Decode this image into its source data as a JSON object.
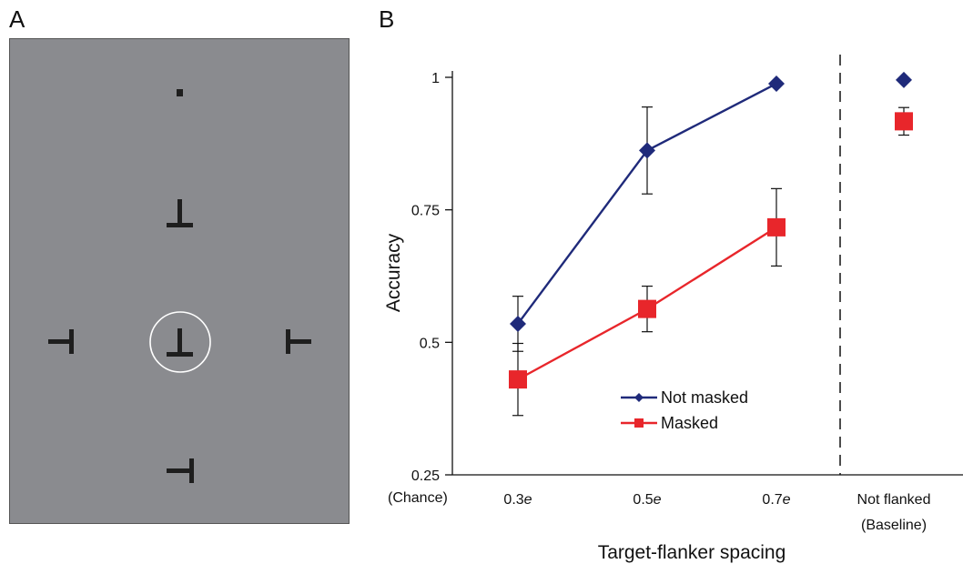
{
  "panels": {
    "a_label": "A",
    "b_label": "B"
  },
  "stimulus": {
    "description_colors": {
      "background": "#8a8b8f",
      "glyph": "#1e1e1e",
      "circle": "#ffffff"
    },
    "items": [
      {
        "role": "fixation",
        "shape": "dot"
      },
      {
        "role": "flanker-top",
        "shape": "T-inverted"
      },
      {
        "role": "flanker-left",
        "shape": "T-rotated-left"
      },
      {
        "role": "target",
        "shape": "T-inverted",
        "circled": true
      },
      {
        "role": "flanker-right",
        "shape": "T-rotated-right"
      },
      {
        "role": "flanker-bottom",
        "shape": "T-rotated-left"
      }
    ]
  },
  "chart_data": {
    "type": "line",
    "xlabel": "Target-flanker spacing",
    "ylabel": "Accuracy",
    "ylim": [
      0.25,
      1
    ],
    "yticks": [
      {
        "value": 0.25,
        "label": "0.25"
      },
      {
        "value": 0.5,
        "label": "0.5"
      },
      {
        "value": 0.75,
        "label": "0.75"
      },
      {
        "value": 1,
        "label": "1"
      }
    ],
    "y_chance_label": "(Chance)",
    "categories": [
      {
        "label_num": "0.3",
        "label_unit": "e"
      },
      {
        "label_num": "0.5",
        "label_unit": "e"
      },
      {
        "label_num": "0.7",
        "label_unit": "e"
      }
    ],
    "baseline_label_line1": "Not flanked",
    "baseline_label_line2": "(Baseline)",
    "series": [
      {
        "name": "Not masked",
        "color": "#1f2a7a",
        "marker": "diamond",
        "values": [
          0.535,
          0.862,
          0.988
        ],
        "err": [
          0.052,
          0.082,
          0.0
        ],
        "baseline": 0.995,
        "baseline_err": 0.0
      },
      {
        "name": "Masked",
        "color": "#e8262b",
        "marker": "square",
        "values": [
          0.43,
          0.563,
          0.717
        ],
        "err": [
          0.068,
          0.043,
          0.073
        ],
        "baseline": 0.917,
        "baseline_err": 0.026
      }
    ],
    "legend_position": "bottom-center",
    "baseline_divider": "dashed"
  }
}
